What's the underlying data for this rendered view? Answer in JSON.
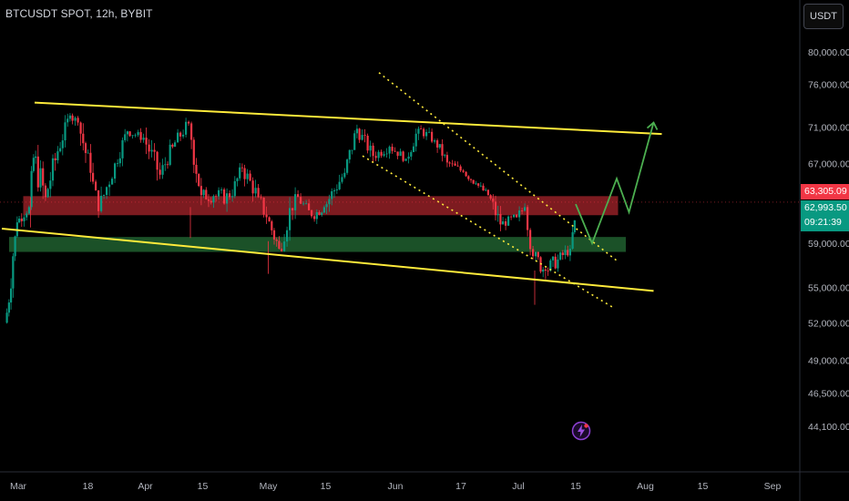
{
  "header": {
    "symbol_title": "BTCUSDT SPOT, 12h, BYBIT"
  },
  "currency_button": {
    "label": "USDT"
  },
  "price_tags": {
    "red_price": "63,305.09",
    "green_price": "62,993.50",
    "countdown": "09:21:39"
  },
  "colors": {
    "background": "#000000",
    "candle_up": "#089981",
    "candle_down": "#f23645",
    "trendline": "#ffeb3b",
    "resistance_zone": "#8b1e24",
    "support_zone": "#1e5a2c",
    "projection": "#4caf50"
  },
  "icons": {
    "logo": "lightning-bolt-icon"
  },
  "chart_data": {
    "type": "candlestick",
    "symbol": "BTCUSDT",
    "interval": "12h",
    "exchange": "BYBIT",
    "y_axis": {
      "scale": "log",
      "tick_labels": [
        "80,000.00",
        "76,000.00",
        "71,000.00",
        "67,000.00",
        "63,305.09",
        "62,993.50",
        "59,000.00",
        "55,000.00",
        "52,000.00",
        "49,000.00",
        "46,500.00",
        "44,100.00"
      ]
    },
    "x_axis": {
      "tick_labels": [
        "Mar",
        "18",
        "Apr",
        "15",
        "May",
        "15",
        "Jun",
        "17",
        "Jul",
        "15",
        "Aug",
        "15",
        "Sep"
      ]
    },
    "last_price": 62993.5,
    "marked_price": 63305.09,
    "zones": [
      {
        "name": "resistance",
        "low": 61700,
        "high": 63600
      },
      {
        "name": "support",
        "low": 58200,
        "high": 59600
      }
    ],
    "lines": [
      {
        "name": "upper-channel",
        "from": [
          "Mar 5",
          73800
        ],
        "to": [
          "Aug 5",
          70200
        ]
      },
      {
        "name": "lower-channel",
        "from": [
          "Feb 26",
          60400
        ],
        "to": [
          "Aug 3",
          54700
        ]
      },
      {
        "name": "dotted-upper",
        "from": [
          "May 28",
          77400
        ],
        "to": [
          "Jul 25",
          57400
        ]
      },
      {
        "name": "dotted-lower",
        "from": [
          "May 24",
          67800
        ],
        "to": [
          "Jul 24",
          53300
        ]
      }
    ],
    "projection_path": [
      [
        "Jul 15",
        62800
      ],
      [
        "Jul 19",
        59000
      ],
      [
        "Jul 25",
        65400
      ],
      [
        "Jul 28",
        62000
      ],
      [
        "Aug 3",
        71500
      ]
    ],
    "ohlc_points": [
      [
        "Feb 27",
        52000,
        54500,
        51000,
        53700
      ],
      [
        "Feb 28",
        53700,
        58500,
        52800,
        57800
      ],
      [
        "Feb 29",
        57800,
        61800,
        57000,
        61000
      ],
      [
        "Mar 1",
        61000,
        63500,
        60400,
        62500
      ],
      [
        "Mar 4",
        62500,
        68500,
        61800,
        67600
      ],
      [
        "Mar 5",
        67600,
        69000,
        59000,
        63500
      ],
      [
        "Mar 8",
        63500,
        70100,
        62800,
        68300
      ],
      [
        "Mar 11",
        68300,
        72800,
        67800,
        72300
      ],
      [
        "Mar 14",
        72300,
        73800,
        70500,
        71500
      ],
      [
        "Mar 16",
        71500,
        72000,
        64500,
        66000
      ],
      [
        "Mar 19",
        66000,
        67800,
        61000,
        62100
      ],
      [
        "Mar 21",
        62100,
        68000,
        61800,
        67000
      ],
      [
        "Mar 25",
        67000,
        71500,
        66500,
        70500
      ],
      [
        "Mar 28",
        70500,
        71500,
        68800,
        69800
      ],
      [
        "Apr 1",
        69800,
        71300,
        64800,
        65800
      ],
      [
        "Apr 5",
        65800,
        69800,
        65000,
        68800
      ],
      [
        "Apr 8",
        68800,
        72800,
        68500,
        71400
      ],
      [
        "Apr 12",
        71400,
        71600,
        61500,
        63700
      ],
      [
        "Apr 15",
        63700,
        65800,
        61800,
        63600
      ],
      [
        "Apr 18",
        63600,
        64500,
        59800,
        63500
      ],
      [
        "Apr 22",
        63500,
        67200,
        63000,
        66500
      ],
      [
        "Apr 25",
        66500,
        67000,
        62000,
        63500
      ],
      [
        "Apr 29",
        63500,
        64500,
        60000,
        61500
      ],
      [
        "May 1",
        61500,
        61600,
        56500,
        58500
      ],
      [
        "May 4",
        58500,
        64500,
        58200,
        63800
      ],
      [
        "May 8",
        63800,
        64200,
        60800,
        61600
      ],
      [
        "May 12",
        61600,
        63500,
        60600,
        62500
      ],
      [
        "May 15",
        62500,
        66500,
        61800,
        66000
      ],
      [
        "May 20",
        66000,
        71500,
        65800,
        70800
      ],
      [
        "May 23",
        70800,
        70900,
        66500,
        67800
      ],
      [
        "May 27",
        67800,
        70500,
        67200,
        68800
      ],
      [
        "May 31",
        68800,
        69500,
        66800,
        67500
      ],
      [
        "Jun 4",
        67500,
        71500,
        67000,
        70800
      ],
      [
        "Jun 7",
        70800,
        71900,
        68800,
        69500
      ],
      [
        "Jun 11",
        69500,
        69800,
        66300,
        67100
      ],
      [
        "Jun 14",
        67100,
        67500,
        65000,
        66100
      ],
      [
        "Jun 18",
        66100,
        66300,
        64000,
        64900
      ],
      [
        "Jun 21",
        64900,
        65200,
        63100,
        63700
      ],
      [
        "Jun 24",
        63700,
        63800,
        58800,
        60800
      ],
      [
        "Jun 27",
        60800,
        62500,
        60000,
        61500
      ],
      [
        "Jul 1",
        61500,
        63800,
        61000,
        62500
      ],
      [
        "Jul 3",
        62500,
        62700,
        57500,
        57800
      ],
      [
        "Jul 5",
        57800,
        58200,
        53500,
        56500
      ],
      [
        "Jul 8",
        56500,
        58500,
        54500,
        57500
      ],
      [
        "Jul 11",
        57500,
        59500,
        56500,
        58500
      ],
      [
        "Jul 14",
        58500,
        61500,
        58200,
        61200
      ],
      [
        "Jul 15",
        61200,
        63800,
        60800,
        62993.5
      ]
    ]
  }
}
